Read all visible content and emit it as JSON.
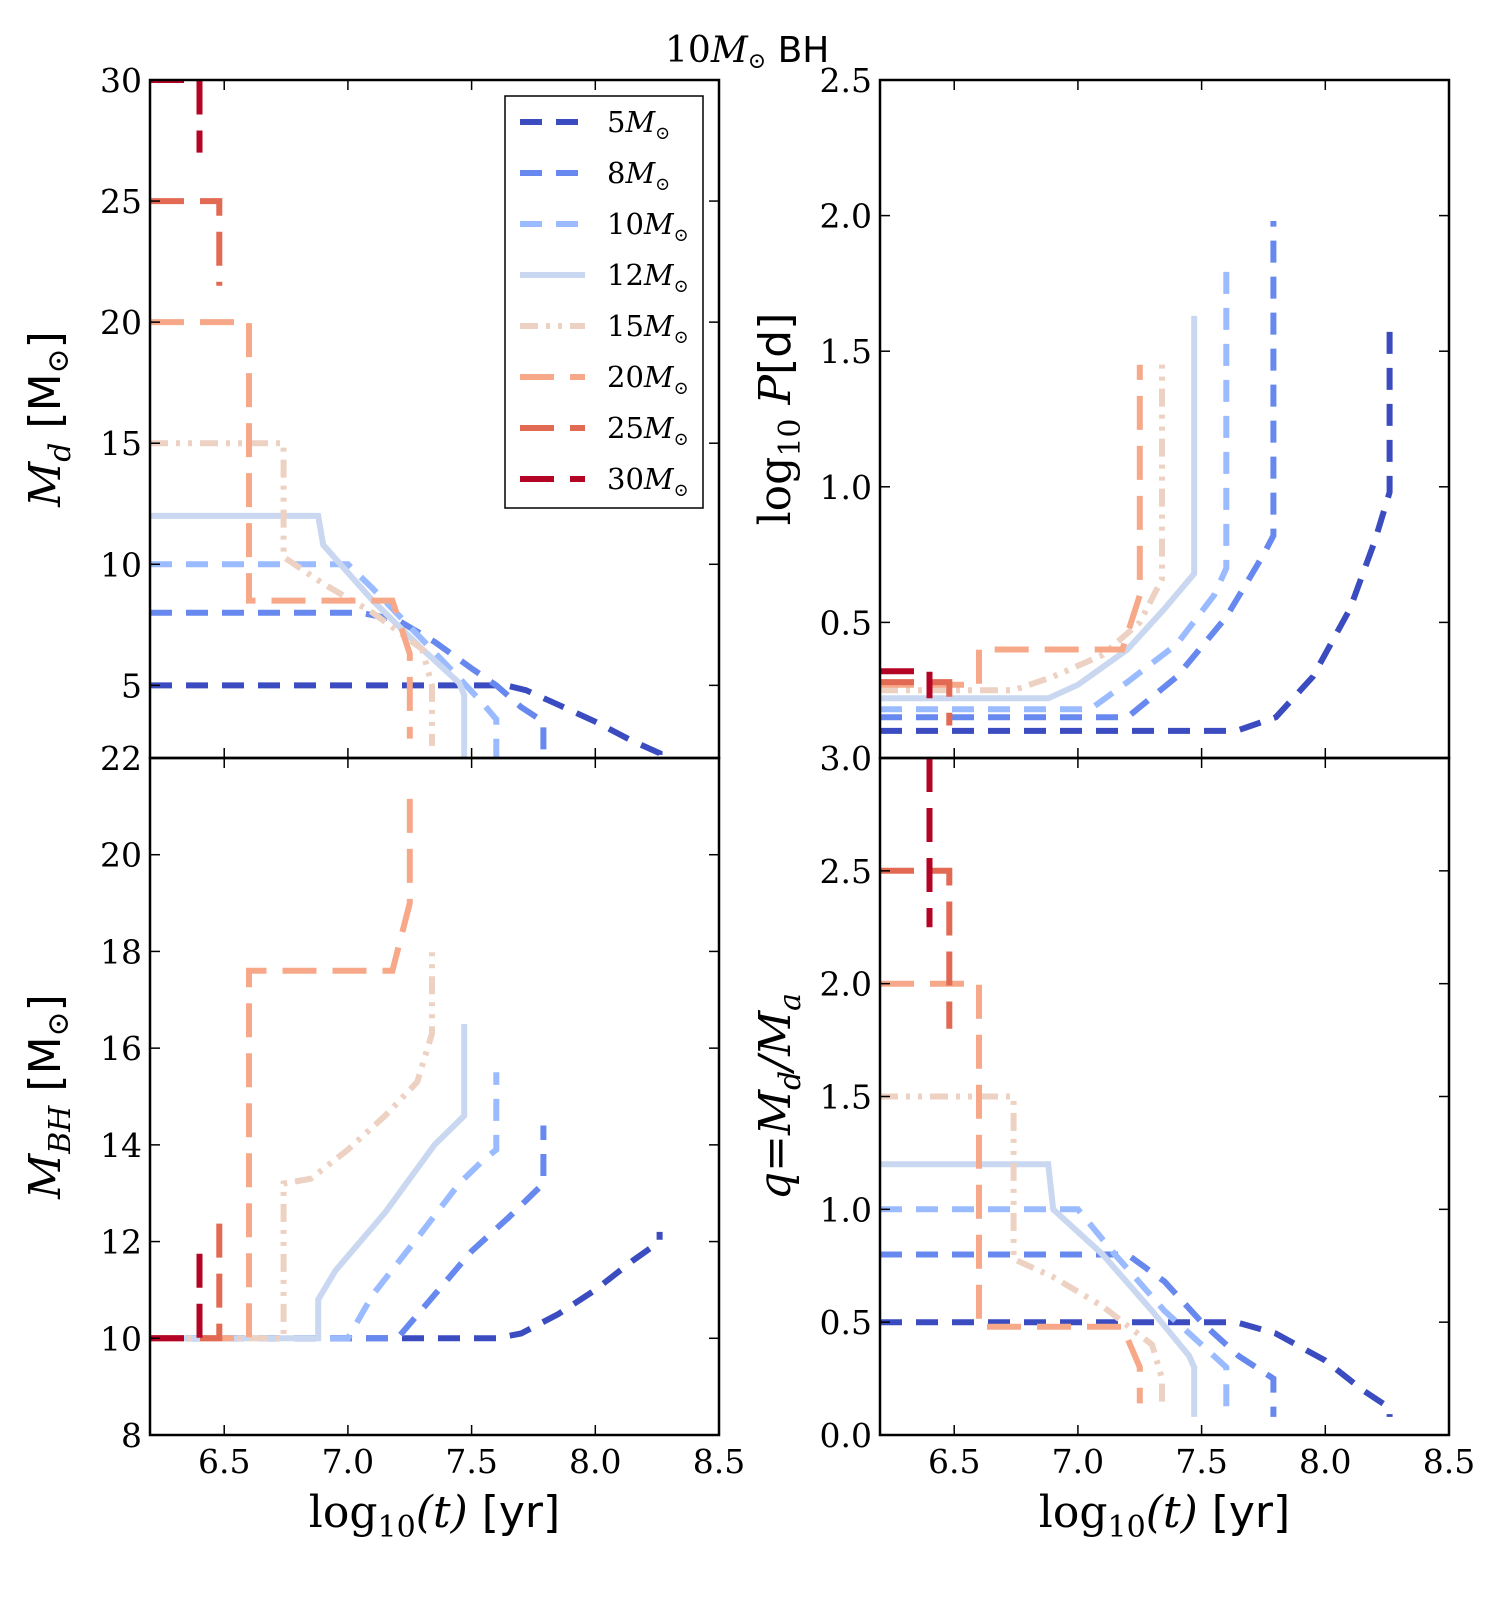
{
  "figure": {
    "title": "10M_⊙ BH",
    "title_main": "10",
    "title_mass": "M",
    "title_sun": "⊙",
    "title_suffix": " BH"
  },
  "legend": {
    "entries": [
      {
        "label": "5",
        "unit": "M",
        "sun": "⊙",
        "color": "#3b4cc0",
        "dash": "dash"
      },
      {
        "label": "8",
        "unit": "M",
        "sun": "⊙",
        "color": "#6788ee",
        "dash": "dash"
      },
      {
        "label": "10",
        "unit": "M",
        "sun": "⊙",
        "color": "#9abbff",
        "dash": "dash"
      },
      {
        "label": "12",
        "unit": "M",
        "sun": "⊙",
        "color": "#c9d7f0",
        "dash": "solid"
      },
      {
        "label": "15",
        "unit": "M",
        "sun": "⊙",
        "color": "#edd1c2",
        "dash": "dashdotdot"
      },
      {
        "label": "20",
        "unit": "M",
        "sun": "⊙",
        "color": "#f7a889",
        "dash": "longdash"
      },
      {
        "label": "25",
        "unit": "M",
        "sun": "⊙",
        "color": "#e26952",
        "dash": "longdash"
      },
      {
        "label": "30",
        "unit": "M",
        "sun": "⊙",
        "color": "#b40426",
        "dash": "longdash"
      }
    ]
  },
  "chart_data": [
    {
      "id": "md",
      "type": "line",
      "ylabel_sym": "M",
      "ylabel_sub": "d",
      "ylabel_unit": " [M",
      "ylabel_sun": "⊙",
      "ylabel_close": "]",
      "xlim": [
        6.2,
        8.5
      ],
      "ylim": [
        2,
        30
      ],
      "yticks": [
        "5",
        "10",
        "15",
        "20",
        "25",
        "30"
      ],
      "ytick_values": [
        5,
        10,
        15,
        20,
        25,
        30
      ],
      "xticks": [],
      "series": [
        {
          "name": "5",
          "points": [
            [
              6.2,
              5
            ],
            [
              7.64,
              5
            ],
            [
              7.72,
              4.8
            ],
            [
              7.85,
              4.2
            ],
            [
              8.0,
              3.5
            ],
            [
              8.15,
              2.7
            ],
            [
              8.26,
              2.2
            ],
            [
              8.26,
              1.2
            ]
          ]
        },
        {
          "name": "8",
          "points": [
            [
              6.2,
              8
            ],
            [
              7.05,
              8
            ],
            [
              7.2,
              7.7
            ],
            [
              7.35,
              6.8
            ],
            [
              7.5,
              5.7
            ],
            [
              7.6,
              5
            ],
            [
              7.7,
              4.1
            ],
            [
              7.79,
              3.5
            ],
            [
              7.79,
              1.2
            ]
          ]
        },
        {
          "name": "10",
          "points": [
            [
              6.2,
              10
            ],
            [
              7.0,
              10
            ],
            [
              7.1,
              9
            ],
            [
              7.3,
              6.9
            ],
            [
              7.45,
              5.3
            ],
            [
              7.55,
              4.2
            ],
            [
              7.6,
              3.6
            ],
            [
              7.6,
              1.5
            ]
          ]
        },
        {
          "name": "12",
          "points": [
            [
              6.2,
              12
            ],
            [
              6.88,
              12
            ],
            [
              6.9,
              10.8
            ],
            [
              7.1,
              8.5
            ],
            [
              7.3,
              6.5
            ],
            [
              7.45,
              5.1
            ],
            [
              7.47,
              4.6
            ],
            [
              7.47,
              2
            ]
          ]
        },
        {
          "name": "15",
          "points": [
            [
              6.2,
              15
            ],
            [
              6.74,
              15
            ],
            [
              6.74,
              10.3
            ],
            [
              6.9,
              9.2
            ],
            [
              7.1,
              8
            ],
            [
              7.3,
              6.5
            ],
            [
              7.34,
              5
            ],
            [
              7.34,
              2.5
            ]
          ]
        },
        {
          "name": "20",
          "points": [
            [
              6.2,
              20
            ],
            [
              6.6,
              20
            ],
            [
              6.6,
              8.5
            ],
            [
              7.18,
              8.5
            ],
            [
              7.25,
              6.3
            ],
            [
              7.25,
              2.8
            ]
          ]
        },
        {
          "name": "25",
          "points": [
            [
              6.2,
              25
            ],
            [
              6.48,
              25
            ],
            [
              6.48,
              21.5
            ]
          ]
        },
        {
          "name": "30",
          "points": [
            [
              6.2,
              30
            ],
            [
              6.4,
              30
            ],
            [
              6.4,
              27
            ]
          ]
        }
      ]
    },
    {
      "id": "period",
      "type": "line",
      "ylabel_pre": "log",
      "ylabel_sub": "10",
      "ylabel_sym": " P",
      "ylabel_unit": "[d]",
      "xlim": [
        6.2,
        8.5
      ],
      "ylim": [
        0.0,
        2.5
      ],
      "yticks": [
        "0.5",
        "1.0",
        "1.5",
        "2.0",
        "2.5"
      ],
      "ytick_values": [
        0.5,
        1.0,
        1.5,
        2.0,
        2.5
      ],
      "xticks": [],
      "series": [
        {
          "name": "5",
          "points": [
            [
              6.2,
              0.1
            ],
            [
              7.64,
              0.1
            ],
            [
              7.8,
              0.15
            ],
            [
              7.95,
              0.3
            ],
            [
              8.1,
              0.55
            ],
            [
              8.2,
              0.8
            ],
            [
              8.26,
              0.98
            ],
            [
              8.26,
              1.6
            ]
          ]
        },
        {
          "name": "8",
          "points": [
            [
              6.2,
              0.15
            ],
            [
              7.2,
              0.15
            ],
            [
              7.4,
              0.3
            ],
            [
              7.6,
              0.52
            ],
            [
              7.75,
              0.75
            ],
            [
              7.79,
              0.82
            ],
            [
              7.79,
              1.98
            ]
          ]
        },
        {
          "name": "10",
          "points": [
            [
              6.2,
              0.18
            ],
            [
              7.05,
              0.18
            ],
            [
              7.2,
              0.28
            ],
            [
              7.4,
              0.42
            ],
            [
              7.55,
              0.6
            ],
            [
              7.6,
              0.7
            ],
            [
              7.6,
              1.8
            ]
          ]
        },
        {
          "name": "12",
          "points": [
            [
              6.2,
              0.22
            ],
            [
              6.88,
              0.22
            ],
            [
              7.0,
              0.27
            ],
            [
              7.2,
              0.4
            ],
            [
              7.35,
              0.55
            ],
            [
              7.47,
              0.68
            ],
            [
              7.47,
              1.63
            ]
          ]
        },
        {
          "name": "15",
          "points": [
            [
              6.2,
              0.25
            ],
            [
              6.74,
              0.25
            ],
            [
              6.9,
              0.3
            ],
            [
              7.1,
              0.38
            ],
            [
              7.25,
              0.5
            ],
            [
              7.34,
              0.66
            ],
            [
              7.34,
              1.48
            ]
          ]
        },
        {
          "name": "20",
          "points": [
            [
              6.2,
              0.27
            ],
            [
              6.6,
              0.27
            ],
            [
              6.6,
              0.4
            ],
            [
              7.18,
              0.4
            ],
            [
              7.25,
              0.6
            ],
            [
              7.25,
              1.45
            ]
          ]
        },
        {
          "name": "25",
          "points": [
            [
              6.2,
              0.28
            ],
            [
              6.48,
              0.28
            ],
            [
              6.48,
              0.12
            ]
          ]
        },
        {
          "name": "30",
          "points": [
            [
              6.2,
              0.32
            ],
            [
              6.4,
              0.32
            ],
            [
              6.4,
              0.22
            ]
          ]
        }
      ]
    },
    {
      "id": "mbh",
      "type": "line",
      "ylabel_sym": "M",
      "ylabel_sub": "BH",
      "ylabel_unit": " [M",
      "ylabel_sun": "⊙",
      "ylabel_close": "]",
      "xlim": [
        6.2,
        8.5
      ],
      "ylim": [
        8,
        22
      ],
      "yticks": [
        "8",
        "10",
        "12",
        "14",
        "16",
        "18",
        "20",
        "22"
      ],
      "ytick_values": [
        8,
        10,
        12,
        14,
        16,
        18,
        20,
        22
      ],
      "xticks": [
        "6.5",
        "7.0",
        "7.5",
        "8.0",
        "8.5"
      ],
      "xtick_values": [
        6.5,
        7.0,
        7.5,
        8.0,
        8.5
      ],
      "xlabel_pre": "log",
      "xlabel_sub": "10",
      "xlabel_arg": "(t)",
      "xlabel_unit": " [yr]",
      "series": [
        {
          "name": "5",
          "points": [
            [
              6.2,
              10
            ],
            [
              7.6,
              10
            ],
            [
              7.7,
              10.1
            ],
            [
              7.85,
              10.5
            ],
            [
              8.0,
              11
            ],
            [
              8.15,
              11.6
            ],
            [
              8.26,
              12.0
            ],
            [
              8.26,
              12.2
            ]
          ]
        },
        {
          "name": "8",
          "points": [
            [
              6.2,
              10
            ],
            [
              7.2,
              10
            ],
            [
              7.35,
              10.9
            ],
            [
              7.5,
              11.8
            ],
            [
              7.65,
              12.5
            ],
            [
              7.79,
              13.2
            ],
            [
              7.79,
              14.4
            ]
          ]
        },
        {
          "name": "10",
          "points": [
            [
              6.2,
              10
            ],
            [
              7.0,
              10
            ],
            [
              7.1,
              10.9
            ],
            [
              7.3,
              12.2
            ],
            [
              7.45,
              13.2
            ],
            [
              7.55,
              13.7
            ],
            [
              7.6,
              13.9
            ],
            [
              7.6,
              15.5
            ]
          ]
        },
        {
          "name": "12",
          "points": [
            [
              6.2,
              10
            ],
            [
              6.88,
              10
            ],
            [
              6.88,
              10.8
            ],
            [
              6.95,
              11.4
            ],
            [
              7.15,
              12.6
            ],
            [
              7.35,
              14.0
            ],
            [
              7.47,
              14.6
            ],
            [
              7.47,
              16.5
            ]
          ]
        },
        {
          "name": "15",
          "points": [
            [
              6.2,
              10
            ],
            [
              6.74,
              10
            ],
            [
              6.74,
              13.2
            ],
            [
              6.85,
              13.3
            ],
            [
              7.0,
              13.9
            ],
            [
              7.15,
              14.6
            ],
            [
              7.28,
              15.3
            ],
            [
              7.34,
              16.3
            ],
            [
              7.34,
              18.0
            ]
          ]
        },
        {
          "name": "20",
          "points": [
            [
              6.2,
              10
            ],
            [
              6.6,
              10
            ],
            [
              6.6,
              17.6
            ],
            [
              7.18,
              17.6
            ],
            [
              7.25,
              19.0
            ],
            [
              7.25,
              21.2
            ]
          ]
        },
        {
          "name": "25",
          "points": [
            [
              6.2,
              10
            ],
            [
              6.48,
              10
            ],
            [
              6.48,
              12.5
            ]
          ]
        },
        {
          "name": "30",
          "points": [
            [
              6.2,
              10
            ],
            [
              6.4,
              10
            ],
            [
              6.4,
              11.9
            ]
          ]
        }
      ]
    },
    {
      "id": "q",
      "type": "line",
      "ylabel_sym": "q",
      "ylabel_eq": "=M",
      "ylabel_sub": "d",
      "ylabel_div": "/M",
      "ylabel_sub2": "a",
      "xlim": [
        6.2,
        8.5
      ],
      "ylim": [
        0.0,
        3.0
      ],
      "yticks": [
        "0.0",
        "0.5",
        "1.0",
        "1.5",
        "2.0",
        "2.5",
        "3.0"
      ],
      "ytick_values": [
        0.0,
        0.5,
        1.0,
        1.5,
        2.0,
        2.5,
        3.0
      ],
      "xticks": [
        "6.5",
        "7.0",
        "7.5",
        "8.0",
        "8.5"
      ],
      "xtick_values": [
        6.5,
        7.0,
        7.5,
        8.0,
        8.5
      ],
      "xlabel_pre": "log",
      "xlabel_sub": "10",
      "xlabel_arg": "(t)",
      "xlabel_unit": " [yr]",
      "series": [
        {
          "name": "5",
          "points": [
            [
              6.2,
              0.5
            ],
            [
              7.64,
              0.5
            ],
            [
              7.8,
              0.45
            ],
            [
              8.0,
              0.33
            ],
            [
              8.15,
              0.2
            ],
            [
              8.26,
              0.12
            ],
            [
              8.26,
              0.08
            ]
          ]
        },
        {
          "name": "8",
          "points": [
            [
              6.2,
              0.8
            ],
            [
              7.2,
              0.8
            ],
            [
              7.35,
              0.68
            ],
            [
              7.5,
              0.5
            ],
            [
              7.65,
              0.35
            ],
            [
              7.79,
              0.25
            ],
            [
              7.79,
              0.08
            ]
          ]
        },
        {
          "name": "10",
          "points": [
            [
              6.2,
              1.0
            ],
            [
              7.0,
              1.0
            ],
            [
              7.15,
              0.8
            ],
            [
              7.35,
              0.55
            ],
            [
              7.55,
              0.35
            ],
            [
              7.6,
              0.3
            ],
            [
              7.6,
              0.08
            ]
          ]
        },
        {
          "name": "12",
          "points": [
            [
              6.2,
              1.2
            ],
            [
              6.88,
              1.2
            ],
            [
              6.9,
              1.0
            ],
            [
              7.1,
              0.8
            ],
            [
              7.3,
              0.55
            ],
            [
              7.45,
              0.35
            ],
            [
              7.47,
              0.3
            ],
            [
              7.47,
              0.08
            ]
          ]
        },
        {
          "name": "15",
          "points": [
            [
              6.2,
              1.5
            ],
            [
              6.74,
              1.5
            ],
            [
              6.74,
              0.78
            ],
            [
              6.9,
              0.7
            ],
            [
              7.1,
              0.57
            ],
            [
              7.3,
              0.4
            ],
            [
              7.34,
              0.25
            ],
            [
              7.34,
              0.12
            ]
          ]
        },
        {
          "name": "20",
          "points": [
            [
              6.2,
              2.0
            ],
            [
              6.6,
              2.0
            ],
            [
              6.6,
              0.48
            ],
            [
              7.18,
              0.48
            ],
            [
              7.25,
              0.3
            ],
            [
              7.25,
              0.14
            ]
          ]
        },
        {
          "name": "25",
          "points": [
            [
              6.2,
              2.5
            ],
            [
              6.48,
              2.5
            ],
            [
              6.48,
              1.8
            ]
          ]
        },
        {
          "name": "30",
          "points": [
            [
              6.4,
              3.0
            ],
            [
              6.4,
              2.25
            ]
          ]
        }
      ]
    }
  ]
}
